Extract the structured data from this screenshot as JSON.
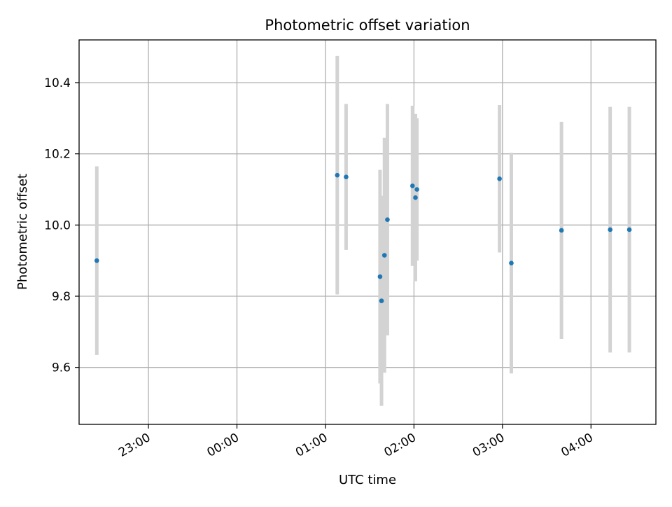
{
  "chart_data": {
    "type": "scatter",
    "title": "Photometric offset variation",
    "xlabel": "UTC time",
    "ylabel": "Photometric offset",
    "x_unit": "UTC time",
    "x_start_date": "2000-01-01",
    "x_range": [
      "22:13",
      "04:44"
    ],
    "ylim": [
      9.44,
      10.52
    ],
    "x_ticks": [
      "23:00",
      "00:00",
      "01:00",
      "02:00",
      "03:00",
      "04:00"
    ],
    "y_ticks": [
      9.6,
      9.8,
      10.0,
      10.2,
      10.4
    ],
    "y_tick_labels": [
      "9.6",
      "9.8",
      "10.0",
      "10.2",
      "10.4"
    ],
    "grid": true,
    "legend": "none",
    "colors": {
      "point": "#1f77b4",
      "errorbar": "#d3d3d3",
      "grid": "#b0b0b0"
    },
    "series": [
      {
        "points": [
          {
            "t": "22:25",
            "y": 9.9,
            "err": 0.265
          },
          {
            "t": "01:08",
            "y": 10.14,
            "err": 0.335
          },
          {
            "t": "01:14",
            "y": 10.135,
            "err": 0.205
          },
          {
            "t": "01:37",
            "y": 9.855,
            "err": 0.3
          },
          {
            "t": "01:38",
            "y": 9.787,
            "err": 0.295
          },
          {
            "t": "01:40",
            "y": 9.915,
            "err": 0.33
          },
          {
            "t": "01:42",
            "y": 10.015,
            "err": 0.325
          },
          {
            "t": "01:59",
            "y": 10.11,
            "err": 0.225
          },
          {
            "t": "02:01",
            "y": 10.077,
            "err": 0.235
          },
          {
            "t": "02:02",
            "y": 10.1,
            "err": 0.2
          },
          {
            "t": "02:58",
            "y": 10.13,
            "err": 0.207
          },
          {
            "t": "03:06",
            "y": 9.893,
            "err": 0.31
          },
          {
            "t": "03:40",
            "y": 9.985,
            "err": 0.305
          },
          {
            "t": "04:13",
            "y": 9.987,
            "err": 0.345
          },
          {
            "t": "04:26",
            "y": 9.987,
            "err": 0.345
          }
        ]
      }
    ]
  }
}
